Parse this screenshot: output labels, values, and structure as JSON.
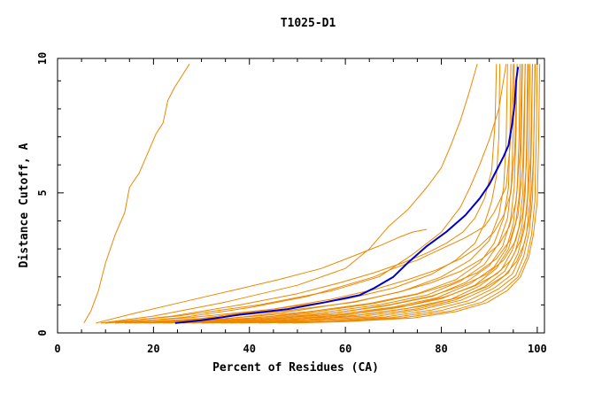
{
  "chart_data": {
    "type": "line",
    "title": "T1025-D1",
    "xlabel": "Percent of Residues (CA)",
    "ylabel": "Distance Cutoff, A",
    "xlim": [
      0,
      101.5
    ],
    "ylim": [
      0,
      9.8
    ],
    "x_ticks": [
      0,
      20,
      40,
      60,
      80,
      100
    ],
    "y_ticks": [
      0,
      5,
      10
    ],
    "grid": false,
    "legend": "none",
    "colors": {
      "highlight": "#0000cc",
      "others": "#ee8800",
      "axis": "#000000"
    },
    "series": [
      {
        "highlight": true,
        "x": [
          24.5,
          30,
          38,
          48,
          56,
          63,
          66,
          70,
          73,
          77,
          81,
          85,
          88,
          90,
          91.5,
          93,
          94,
          94.8,
          95.3,
          95.6,
          96
        ],
        "y": [
          0.35,
          0.45,
          0.65,
          0.85,
          1.1,
          1.35,
          1.6,
          2.0,
          2.5,
          3.1,
          3.6,
          4.2,
          4.8,
          5.3,
          5.8,
          6.3,
          6.7,
          7.5,
          8.2,
          9.0,
          9.5
        ]
      },
      {
        "x": [
          5.5,
          7,
          8.5,
          10,
          12,
          14,
          15,
          17,
          19,
          20.5,
          22,
          23,
          24.5,
          26,
          27.5
        ],
        "y": [
          0.35,
          0.8,
          1.5,
          2.5,
          3.5,
          4.3,
          5.2,
          5.7,
          6.5,
          7.1,
          7.5,
          8.3,
          8.8,
          9.2,
          9.6
        ]
      },
      {
        "x": [
          9,
          20,
          35,
          50,
          60,
          65,
          69,
          73,
          77,
          80,
          82,
          84,
          86,
          87.5
        ],
        "y": [
          0.35,
          0.6,
          1.1,
          1.7,
          2.3,
          3.0,
          3.8,
          4.4,
          5.2,
          5.9,
          6.7,
          7.6,
          8.7,
          9.6
        ]
      },
      {
        "x": [
          9,
          25,
          42,
          57,
          67,
          74,
          80,
          84,
          86,
          88,
          90,
          92,
          93.5
        ],
        "y": [
          0.35,
          0.6,
          1.0,
          1.5,
          2.0,
          2.8,
          3.6,
          4.5,
          5.2,
          6.0,
          6.9,
          8.0,
          9.6
        ]
      },
      {
        "x": [
          10,
          28,
          45,
          60,
          70,
          78,
          83,
          87,
          89,
          90.5,
          91.5,
          92,
          92.2
        ],
        "y": [
          0.35,
          0.55,
          0.85,
          1.2,
          1.6,
          2.1,
          2.6,
          3.2,
          3.9,
          4.7,
          5.6,
          7.0,
          9.6
        ]
      },
      {
        "x": [
          12,
          30,
          48,
          62,
          72,
          80,
          86,
          90,
          92,
          93,
          93.5,
          93.8
        ],
        "y": [
          0.35,
          0.5,
          0.8,
          1.1,
          1.5,
          2.0,
          2.6,
          3.3,
          4.2,
          5.2,
          6.8,
          9.6
        ]
      },
      {
        "x": [
          14,
          34,
          52,
          65,
          75,
          83,
          88,
          91,
          93,
          94,
          94.3,
          94.5
        ],
        "y": [
          0.35,
          0.5,
          0.75,
          1.05,
          1.4,
          1.9,
          2.5,
          3.2,
          4.1,
          5.2,
          7.0,
          9.6
        ]
      },
      {
        "x": [
          16,
          36,
          54,
          67,
          77,
          84,
          89,
          92,
          93.8,
          94.6,
          95,
          95.2
        ],
        "y": [
          0.35,
          0.48,
          0.7,
          1.0,
          1.35,
          1.85,
          2.45,
          3.2,
          4.1,
          5.3,
          7.2,
          9.6
        ]
      },
      {
        "x": [
          18,
          38,
          56,
          68,
          78,
          85,
          90,
          92.8,
          94.4,
          95.2,
          95.6,
          95.8
        ],
        "y": [
          0.35,
          0.47,
          0.68,
          0.95,
          1.3,
          1.8,
          2.4,
          3.1,
          4.0,
          5.2,
          7.2,
          9.6
        ]
      },
      {
        "x": [
          20,
          40,
          58,
          70,
          79,
          86,
          91,
          93.5,
          95,
          95.8,
          96.2,
          96.4
        ],
        "y": [
          0.35,
          0.46,
          0.66,
          0.92,
          1.25,
          1.75,
          2.35,
          3.0,
          3.9,
          5.1,
          7.0,
          9.6
        ]
      },
      {
        "x": [
          22,
          42,
          60,
          71,
          80,
          87,
          91.5,
          94,
          95.5,
          96.3,
          96.7,
          96.9
        ],
        "y": [
          0.35,
          0.45,
          0.64,
          0.9,
          1.22,
          1.7,
          2.3,
          3.0,
          3.9,
          5.0,
          7.0,
          9.6
        ]
      },
      {
        "x": [
          26,
          44,
          62,
          73,
          82,
          88,
          92.5,
          94.8,
          96.2,
          97,
          97.3,
          97.5
        ],
        "y": [
          0.35,
          0.44,
          0.62,
          0.88,
          1.2,
          1.68,
          2.25,
          2.95,
          3.8,
          5.0,
          7.0,
          9.6
        ]
      },
      {
        "x": [
          30,
          47,
          64,
          75,
          83,
          89,
          93.2,
          95.4,
          96.8,
          97.5,
          97.8,
          98
        ],
        "y": [
          0.35,
          0.43,
          0.6,
          0.86,
          1.18,
          1.65,
          2.2,
          2.9,
          3.8,
          5.0,
          7.0,
          9.6
        ]
      },
      {
        "x": [
          34,
          50,
          66,
          76,
          84,
          90,
          94,
          96,
          97.3,
          98,
          98.3,
          98.5
        ],
        "y": [
          0.35,
          0.42,
          0.58,
          0.84,
          1.16,
          1.62,
          2.15,
          2.85,
          3.7,
          4.9,
          7.0,
          9.6
        ]
      },
      {
        "x": [
          38,
          53,
          68,
          78,
          85.5,
          91,
          94.8,
          96.7,
          97.8,
          98.5,
          98.8,
          99
        ],
        "y": [
          0.35,
          0.41,
          0.56,
          0.82,
          1.14,
          1.6,
          2.1,
          2.8,
          3.6,
          4.8,
          7.0,
          9.6
        ]
      },
      {
        "x": [
          42,
          56,
          70,
          80,
          87,
          92,
          95.5,
          97.2,
          98.3,
          99,
          99.3,
          99.5
        ],
        "y": [
          0.35,
          0.4,
          0.55,
          0.8,
          1.12,
          1.58,
          2.05,
          2.75,
          3.6,
          4.8,
          7.0,
          9.6
        ]
      },
      {
        "x": [
          46,
          58,
          72,
          82,
          88.5,
          93,
          96,
          97.8,
          98.8,
          99.5,
          99.8,
          100
        ],
        "y": [
          0.35,
          0.4,
          0.54,
          0.78,
          1.1,
          1.55,
          2.0,
          2.7,
          3.5,
          4.7,
          7.0,
          9.6
        ]
      },
      {
        "x": [
          49,
          60,
          74,
          83,
          89.5,
          93.8,
          96.5,
          98.2,
          99.2,
          100,
          100.3,
          100.5
        ],
        "y": [
          0.35,
          0.4,
          0.53,
          0.76,
          1.08,
          1.52,
          2.0,
          2.7,
          3.5,
          4.7,
          7.0,
          9.6
        ]
      },
      {
        "x": [
          12,
          26,
          40,
          52,
          60,
          66,
          70,
          75,
          80,
          85,
          89,
          91,
          93.5,
          94.5,
          95
        ],
        "y": [
          0.35,
          0.55,
          0.9,
          1.3,
          1.7,
          2.0,
          2.3,
          2.6,
          3.0,
          3.4,
          3.8,
          4.3,
          5.2,
          7.0,
          9.6
        ]
      },
      {
        "x": [
          15,
          30,
          45,
          57,
          66,
          73,
          79,
          84,
          88,
          91,
          93,
          94.5,
          95.3,
          95.8
        ],
        "y": [
          0.35,
          0.52,
          0.85,
          1.2,
          1.55,
          1.9,
          2.25,
          2.65,
          3.1,
          3.6,
          4.2,
          5.0,
          6.5,
          9.6
        ]
      },
      {
        "x": [
          19,
          35,
          50,
          62,
          71,
          78,
          84,
          88.5,
          92,
          94.2,
          95.6,
          96.4,
          96.8
        ],
        "y": [
          0.35,
          0.5,
          0.8,
          1.12,
          1.45,
          1.8,
          2.2,
          2.65,
          3.15,
          3.8,
          4.7,
          6.5,
          9.6
        ]
      },
      {
        "x": [
          23,
          38,
          54,
          66,
          75,
          82,
          87.5,
          91.5,
          94.3,
          96,
          97,
          97.5
        ],
        "y": [
          0.35,
          0.48,
          0.76,
          1.05,
          1.38,
          1.75,
          2.15,
          2.65,
          3.3,
          4.2,
          6.0,
          9.6
        ]
      },
      {
        "x": [
          28,
          43,
          58,
          69,
          78,
          84.5,
          89.5,
          93,
          95.5,
          97,
          97.8,
          98.2
        ],
        "y": [
          0.35,
          0.46,
          0.72,
          1.0,
          1.32,
          1.7,
          2.1,
          2.6,
          3.3,
          4.3,
          6.2,
          9.6
        ]
      },
      {
        "x": [
          32,
          48,
          62,
          73,
          81,
          87,
          91.5,
          94.5,
          96.5,
          97.8,
          98.6,
          99
        ],
        "y": [
          0.35,
          0.45,
          0.7,
          0.98,
          1.3,
          1.68,
          2.1,
          2.6,
          3.3,
          4.3,
          6.3,
          9.6
        ]
      },
      {
        "x": [
          36,
          52,
          65,
          76,
          84,
          89.5,
          93.2,
          95.7,
          97.4,
          98.5,
          99.2,
          99.6
        ],
        "y": [
          0.35,
          0.44,
          0.68,
          0.95,
          1.28,
          1.65,
          2.05,
          2.55,
          3.25,
          4.2,
          6.2,
          9.6
        ]
      },
      {
        "x": [
          10,
          24,
          38,
          50,
          59,
          66,
          72,
          77,
          81,
          84.5,
          87,
          89,
          90.5,
          91.2,
          91.5
        ],
        "y": [
          0.35,
          0.6,
          1.0,
          1.4,
          1.8,
          2.15,
          2.5,
          2.85,
          3.2,
          3.6,
          4.1,
          4.8,
          5.8,
          7.5,
          9.6
        ]
      },
      {
        "x": [
          8,
          16,
          26,
          36,
          46,
          55,
          61,
          67,
          71,
          74,
          77
        ],
        "y": [
          0.35,
          0.7,
          1.1,
          1.5,
          1.9,
          2.3,
          2.7,
          3.1,
          3.4,
          3.6,
          3.7
        ]
      }
    ]
  }
}
